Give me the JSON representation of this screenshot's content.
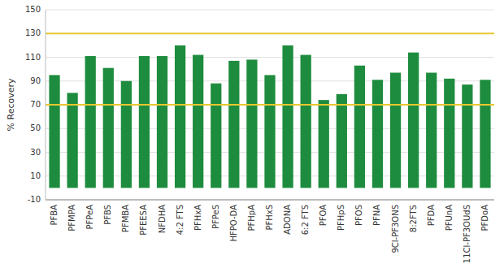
{
  "chart_data": {
    "type": "bar",
    "categories": [
      "PFBA",
      "PFMPA",
      "PFPeA",
      "PFBS",
      "PFMBA",
      "PFEESA",
      "NFDHA",
      "4:2 FTS",
      "PFHxA",
      "PFPeS",
      "HFPO-DA",
      "PFHpA",
      "PFHxS",
      "ADONA",
      "6:2 FTS",
      "PFOA",
      "PFHpS",
      "PFOS",
      "PFNA",
      "9Cl-PF3ONS",
      "8:2FTS",
      "PFDA",
      "PFUnA",
      "11Cl-PF3OUdS",
      "PFDoA"
    ],
    "values": [
      95,
      80,
      111,
      101,
      90,
      111,
      111,
      120,
      112,
      88,
      107,
      108,
      95,
      120,
      112,
      74,
      79,
      103,
      91,
      97,
      114,
      97,
      92,
      87,
      91
    ],
    "color": "#1e8c3e",
    "ylabel": "% Recovery",
    "ylim": [
      -10,
      150
    ],
    "yticks": [
      -10,
      10,
      30,
      50,
      70,
      90,
      110,
      130,
      150
    ],
    "grid": true,
    "reference_lines": [
      {
        "value": 70,
        "color": "#e8c830"
      },
      {
        "value": 130,
        "color": "#e8c830"
      }
    ]
  }
}
